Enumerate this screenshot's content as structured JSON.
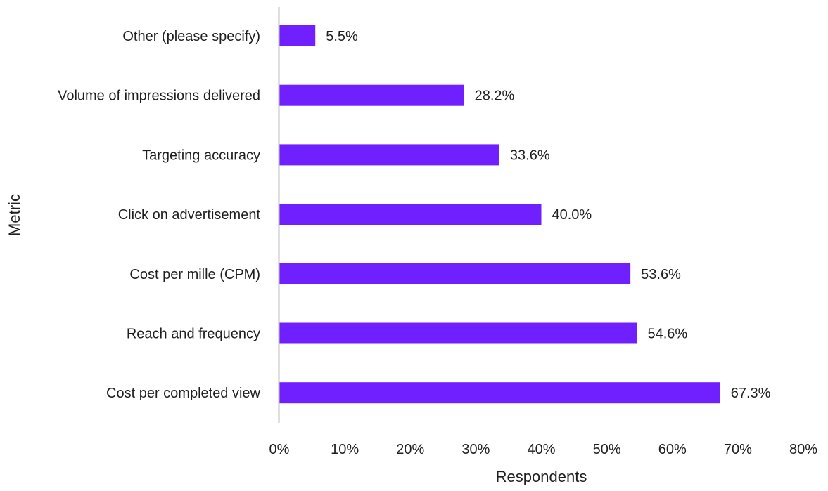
{
  "chart_data": {
    "type": "bar",
    "orientation": "horizontal",
    "title": "",
    "xlabel": "Respondents",
    "ylabel": "Metric",
    "categories": [
      "Other (please specify)",
      "Volume of impressions delivered",
      "Targeting accuracy",
      "Click on advertisement",
      "Cost per mille (CPM)",
      "Reach and frequency",
      "Cost per completed view"
    ],
    "values": [
      5.5,
      28.2,
      33.6,
      40.0,
      53.6,
      54.6,
      67.3
    ],
    "data_labels": [
      "5.5%",
      "28.2%",
      "33.6%",
      "40.0%",
      "53.6%",
      "54.6%",
      "67.3%"
    ],
    "xlim": [
      0,
      80
    ],
    "x_ticks": [
      0,
      10,
      20,
      30,
      40,
      50,
      60,
      70,
      80
    ],
    "x_tick_labels": [
      "0%",
      "10%",
      "20%",
      "30%",
      "40%",
      "50%",
      "60%",
      "70%",
      "80%"
    ],
    "grid": false,
    "legend": "none",
    "bar_color": "#7020FF",
    "axis_color": "#bfbfbf"
  }
}
